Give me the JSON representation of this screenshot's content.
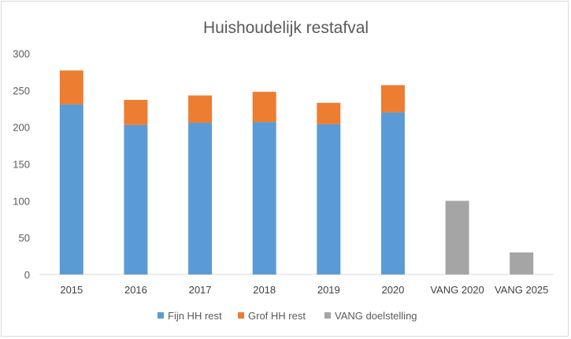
{
  "chart_data": {
    "type": "bar",
    "stacked": true,
    "title": "Huishoudelijk restafval",
    "xlabel": "",
    "ylabel": "",
    "categories": [
      "2015",
      "2016",
      "2017",
      "2018",
      "2019",
      "2020",
      "VANG 2020",
      "VANG 2025"
    ],
    "ylim": [
      0,
      300
    ],
    "yticks": [
      0,
      50,
      100,
      150,
      200,
      250,
      300
    ],
    "grid": false,
    "legend_position": "bottom",
    "series": [
      {
        "name": "Fijn HH rest",
        "color": "#5b9bd5",
        "values": [
          231,
          203,
          206,
          207,
          204,
          220,
          0,
          0
        ]
      },
      {
        "name": "Grof HH rest",
        "color": "#ed7d31",
        "values": [
          46,
          34,
          37,
          41,
          29,
          37,
          0,
          0
        ]
      },
      {
        "name": "VANG doelstelling",
        "color": "#a5a5a5",
        "values": [
          0,
          0,
          0,
          0,
          0,
          0,
          100,
          30
        ]
      }
    ]
  }
}
